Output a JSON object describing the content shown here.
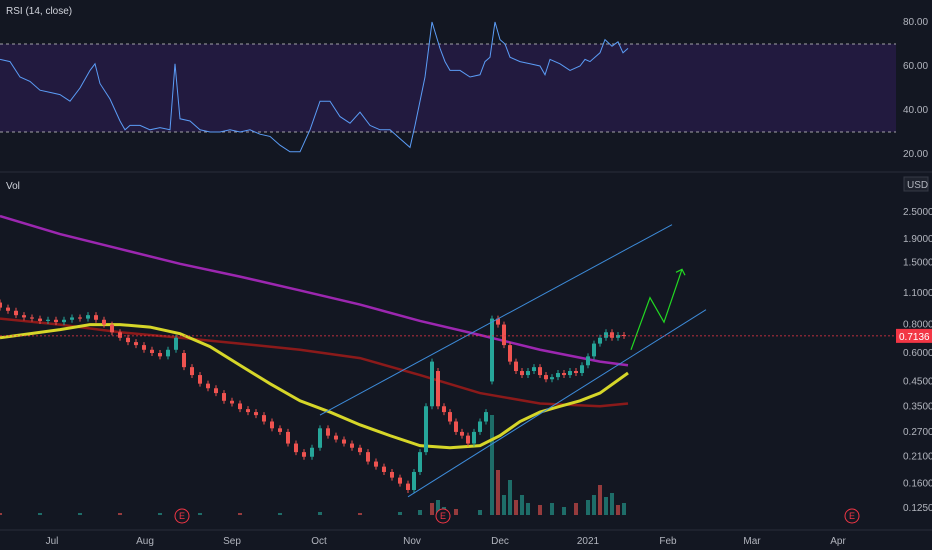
{
  "rsi_pane": {
    "label": "RSI (14, close)",
    "ticks": [
      "80.00",
      "60.00",
      "40.00",
      "20.00"
    ],
    "overbought": 70,
    "oversold": 30,
    "colors": {
      "line": "#5b9cf6",
      "band": "#2a1f4d",
      "bands_dash": "#cfcfcf"
    }
  },
  "price_pane": {
    "volume_label": "Vol",
    "currency": "USD",
    "ticks": [
      "2.5000",
      "1.9000",
      "1.5000",
      "1.1000",
      "0.8000",
      "0.6000",
      "0.4500",
      "0.3500",
      "0.2700",
      "0.2100",
      "0.1600",
      "0.1250"
    ],
    "last_price": "0.7136",
    "last_price_tag_color": "#f23645"
  },
  "x_axis": {
    "months": [
      "Jul",
      "Aug",
      "Sep",
      "Oct",
      "Nov",
      "Dec",
      "2021",
      "Feb",
      "Mar",
      "Apr"
    ]
  },
  "events": [
    "E",
    "E",
    "E"
  ],
  "chart_data": {
    "type": "line",
    "title": "",
    "rsi_series": {
      "name": "RSI (14, close)",
      "points": [
        [
          0,
          63
        ],
        [
          10,
          62
        ],
        [
          20,
          55
        ],
        [
          30,
          53
        ],
        [
          40,
          49
        ],
        [
          50,
          48
        ],
        [
          60,
          47
        ],
        [
          70,
          44
        ],
        [
          80,
          50
        ],
        [
          90,
          58
        ],
        [
          95,
          61
        ],
        [
          100,
          52
        ],
        [
          110,
          45
        ],
        [
          120,
          35
        ],
        [
          125,
          31
        ],
        [
          130,
          33
        ],
        [
          140,
          33
        ],
        [
          150,
          31
        ],
        [
          160,
          32
        ],
        [
          170,
          31
        ],
        [
          175,
          61
        ],
        [
          180,
          36
        ],
        [
          190,
          35
        ],
        [
          200,
          31
        ],
        [
          210,
          30
        ],
        [
          220,
          30
        ],
        [
          230,
          31
        ],
        [
          240,
          30
        ],
        [
          250,
          31
        ],
        [
          260,
          29
        ],
        [
          270,
          28
        ],
        [
          280,
          24
        ],
        [
          290,
          21
        ],
        [
          300,
          21
        ],
        [
          310,
          31
        ],
        [
          320,
          44
        ],
        [
          330,
          44
        ],
        [
          340,
          37
        ],
        [
          350,
          34
        ],
        [
          360,
          39
        ],
        [
          370,
          33
        ],
        [
          380,
          31
        ],
        [
          390,
          31
        ],
        [
          400,
          27
        ],
        [
          410,
          23
        ],
        [
          415,
          33
        ],
        [
          425,
          55
        ],
        [
          432,
          80
        ],
        [
          440,
          68
        ],
        [
          445,
          62
        ],
        [
          450,
          58
        ],
        [
          460,
          58
        ],
        [
          470,
          55
        ],
        [
          480,
          56
        ],
        [
          485,
          62
        ],
        [
          490,
          64
        ],
        [
          495,
          80
        ],
        [
          500,
          72
        ],
        [
          505,
          70
        ],
        [
          510,
          64
        ],
        [
          520,
          62
        ],
        [
          530,
          61
        ],
        [
          540,
          60
        ],
        [
          545,
          56
        ],
        [
          550,
          63
        ],
        [
          560,
          61
        ],
        [
          570,
          58
        ],
        [
          580,
          60
        ],
        [
          585,
          63
        ],
        [
          590,
          62
        ],
        [
          600,
          66
        ],
        [
          605,
          72
        ],
        [
          612,
          69
        ],
        [
          618,
          71
        ],
        [
          623,
          66
        ],
        [
          628,
          68
        ]
      ]
    },
    "price_series": [
      {
        "name": "",
        "color": "#9c27b0",
        "points": [
          [
            0,
            2.4
          ],
          [
            60,
            2.0
          ],
          [
            120,
            1.72
          ],
          [
            180,
            1.48
          ],
          [
            240,
            1.3
          ],
          [
            300,
            1.13
          ],
          [
            360,
            0.98
          ],
          [
            420,
            0.83
          ],
          [
            480,
            0.72
          ],
          [
            540,
            0.62
          ],
          [
            600,
            0.55
          ],
          [
            628,
            0.53
          ]
        ]
      },
      {
        "name": "",
        "color": "#8b1a1a",
        "points": [
          [
            0,
            0.85
          ],
          [
            60,
            0.8
          ],
          [
            120,
            0.74
          ],
          [
            180,
            0.7
          ],
          [
            240,
            0.66
          ],
          [
            300,
            0.62
          ],
          [
            360,
            0.57
          ],
          [
            420,
            0.48
          ],
          [
            480,
            0.4
          ],
          [
            540,
            0.36
          ],
          [
            600,
            0.35
          ],
          [
            628,
            0.36
          ]
        ]
      },
      {
        "name": "",
        "color": "#d6d629",
        "points": [
          [
            0,
            0.7
          ],
          [
            60,
            0.76
          ],
          [
            90,
            0.8
          ],
          [
            120,
            0.8
          ],
          [
            150,
            0.78
          ],
          [
            180,
            0.73
          ],
          [
            210,
            0.64
          ],
          [
            240,
            0.53
          ],
          [
            270,
            0.44
          ],
          [
            300,
            0.37
          ],
          [
            330,
            0.33
          ],
          [
            360,
            0.29
          ],
          [
            390,
            0.26
          ],
          [
            420,
            0.235
          ],
          [
            450,
            0.23
          ],
          [
            480,
            0.235
          ],
          [
            500,
            0.26
          ],
          [
            520,
            0.3
          ],
          [
            540,
            0.33
          ],
          [
            560,
            0.35
          ],
          [
            580,
            0.37
          ],
          [
            600,
            0.4
          ],
          [
            628,
            0.49
          ]
        ]
      }
    ],
    "candles": [
      [
        0,
        1.0,
        0.95
      ],
      [
        8,
        0.95,
        0.92
      ],
      [
        16,
        0.92,
        0.88
      ],
      [
        24,
        0.88,
        0.86
      ],
      [
        32,
        0.86,
        0.85
      ],
      [
        40,
        0.85,
        0.83
      ],
      [
        48,
        0.83,
        0.84
      ],
      [
        56,
        0.84,
        0.82
      ],
      [
        64,
        0.82,
        0.84
      ],
      [
        72,
        0.84,
        0.86
      ],
      [
        80,
        0.86,
        0.85
      ],
      [
        88,
        0.85,
        0.88
      ],
      [
        96,
        0.88,
        0.84
      ],
      [
        104,
        0.84,
        0.8
      ],
      [
        112,
        0.8,
        0.74
      ],
      [
        120,
        0.74,
        0.7
      ],
      [
        128,
        0.7,
        0.67
      ],
      [
        136,
        0.67,
        0.65
      ],
      [
        144,
        0.65,
        0.62
      ],
      [
        152,
        0.62,
        0.6
      ],
      [
        160,
        0.6,
        0.58
      ],
      [
        168,
        0.58,
        0.62
      ],
      [
        176,
        0.62,
        0.7
      ],
      [
        184,
        0.6,
        0.52
      ],
      [
        192,
        0.52,
        0.48
      ],
      [
        200,
        0.48,
        0.44
      ],
      [
        208,
        0.44,
        0.42
      ],
      [
        216,
        0.42,
        0.4
      ],
      [
        224,
        0.4,
        0.37
      ],
      [
        232,
        0.37,
        0.36
      ],
      [
        240,
        0.36,
        0.34
      ],
      [
        248,
        0.34,
        0.33
      ],
      [
        256,
        0.33,
        0.32
      ],
      [
        264,
        0.32,
        0.3
      ],
      [
        272,
        0.3,
        0.28
      ],
      [
        280,
        0.28,
        0.27
      ],
      [
        288,
        0.27,
        0.24
      ],
      [
        296,
        0.24,
        0.22
      ],
      [
        304,
        0.22,
        0.21
      ],
      [
        312,
        0.21,
        0.23
      ],
      [
        320,
        0.23,
        0.28
      ],
      [
        328,
        0.28,
        0.26
      ],
      [
        336,
        0.26,
        0.25
      ],
      [
        344,
        0.25,
        0.24
      ],
      [
        352,
        0.24,
        0.23
      ],
      [
        360,
        0.23,
        0.22
      ],
      [
        368,
        0.22,
        0.2
      ],
      [
        376,
        0.2,
        0.19
      ],
      [
        384,
        0.19,
        0.18
      ],
      [
        392,
        0.18,
        0.17
      ],
      [
        400,
        0.17,
        0.16
      ],
      [
        408,
        0.16,
        0.15
      ],
      [
        414,
        0.15,
        0.18
      ],
      [
        420,
        0.18,
        0.22
      ],
      [
        426,
        0.22,
        0.35
      ],
      [
        432,
        0.35,
        0.55
      ],
      [
        438,
        0.5,
        0.35
      ],
      [
        444,
        0.35,
        0.33
      ],
      [
        450,
        0.33,
        0.3
      ],
      [
        456,
        0.3,
        0.27
      ],
      [
        462,
        0.27,
        0.26
      ],
      [
        468,
        0.26,
        0.24
      ],
      [
        474,
        0.24,
        0.27
      ],
      [
        480,
        0.27,
        0.3
      ],
      [
        486,
        0.3,
        0.33
      ],
      [
        492,
        0.45,
        0.85
      ],
      [
        498,
        0.85,
        0.8
      ],
      [
        504,
        0.8,
        0.65
      ],
      [
        510,
        0.65,
        0.55
      ],
      [
        516,
        0.55,
        0.5
      ],
      [
        522,
        0.5,
        0.48
      ],
      [
        528,
        0.48,
        0.5
      ],
      [
        534,
        0.5,
        0.52
      ],
      [
        540,
        0.52,
        0.48
      ],
      [
        546,
        0.48,
        0.46
      ],
      [
        552,
        0.46,
        0.47
      ],
      [
        558,
        0.47,
        0.49
      ],
      [
        564,
        0.49,
        0.48
      ],
      [
        570,
        0.48,
        0.5
      ],
      [
        576,
        0.5,
        0.49
      ],
      [
        582,
        0.49,
        0.53
      ],
      [
        588,
        0.53,
        0.58
      ],
      [
        594,
        0.58,
        0.66
      ],
      [
        600,
        0.66,
        0.7
      ],
      [
        606,
        0.7,
        0.74
      ],
      [
        612,
        0.74,
        0.7
      ],
      [
        618,
        0.7,
        0.72
      ],
      [
        624,
        0.72,
        0.7136
      ]
    ],
    "volume": [
      [
        0,
        0.02
      ],
      [
        40,
        0.02
      ],
      [
        80,
        0.02
      ],
      [
        120,
        0.02
      ],
      [
        160,
        0.02
      ],
      [
        200,
        0.02
      ],
      [
        240,
        0.02
      ],
      [
        280,
        0.02
      ],
      [
        320,
        0.03
      ],
      [
        360,
        0.02
      ],
      [
        400,
        0.03
      ],
      [
        420,
        0.05
      ],
      [
        432,
        0.12
      ],
      [
        438,
        0.15
      ],
      [
        444,
        0.08
      ],
      [
        456,
        0.06
      ],
      [
        480,
        0.05
      ],
      [
        492,
        1.0
      ],
      [
        498,
        0.45
      ],
      [
        504,
        0.2
      ],
      [
        510,
        0.35
      ],
      [
        516,
        0.15
      ],
      [
        522,
        0.2
      ],
      [
        528,
        0.12
      ],
      [
        540,
        0.1
      ],
      [
        552,
        0.12
      ],
      [
        564,
        0.08
      ],
      [
        576,
        0.12
      ],
      [
        588,
        0.15
      ],
      [
        594,
        0.2
      ],
      [
        600,
        0.3
      ],
      [
        606,
        0.18
      ],
      [
        612,
        0.22
      ],
      [
        618,
        0.1
      ],
      [
        624,
        0.12
      ]
    ],
    "channel": {
      "upper": [
        [
          320,
          0.32
        ],
        [
          672,
          2.2
        ]
      ],
      "lower": [
        [
          408,
          0.14
        ],
        [
          706,
          0.93
        ]
      ]
    },
    "projection": [
      [
        631,
        0.62
      ],
      [
        650,
        1.05
      ],
      [
        664,
        0.82
      ],
      [
        682,
        1.4
      ]
    ]
  }
}
